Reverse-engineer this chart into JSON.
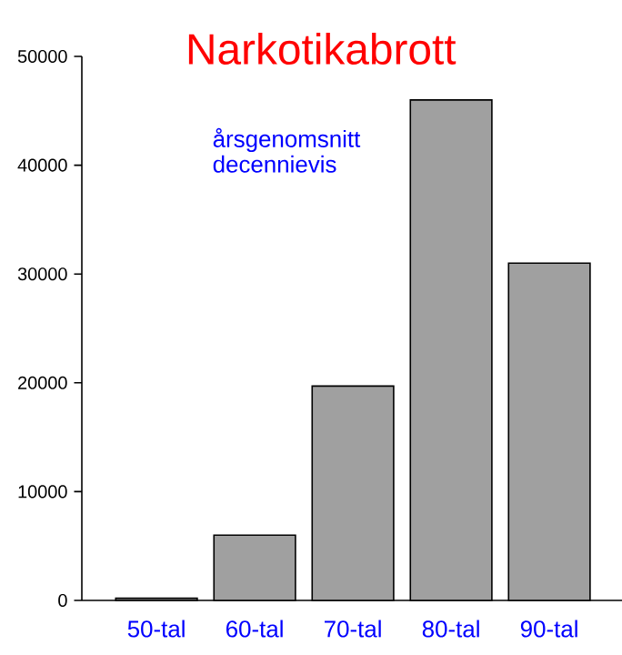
{
  "chart_data": {
    "type": "bar",
    "title": "Narkotikabrott",
    "annotations": [
      "årsgenomsnitt decennievis"
    ],
    "categories": [
      "50-tal",
      "60-tal",
      "70-tal",
      "80-tal",
      "90-tal"
    ],
    "values": [
      200,
      6000,
      19700,
      46000,
      31000
    ],
    "color": "#a0a0a0",
    "ylim": [
      0,
      50000
    ],
    "yticks": [
      0,
      10000,
      20000,
      30000,
      40000,
      50000
    ]
  }
}
